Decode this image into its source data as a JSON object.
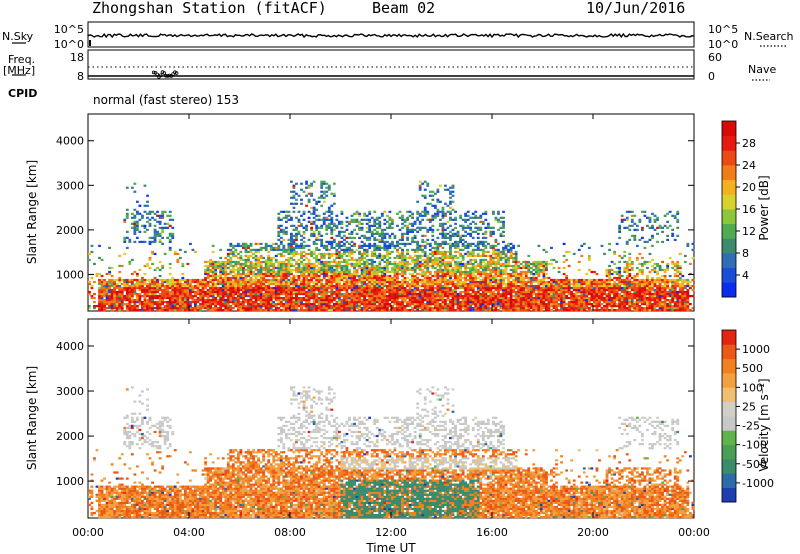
{
  "header": {
    "station": "Zhongshan Station (fitACF)",
    "beam": "Beam 02",
    "date": "10/Jun/2016"
  },
  "noise_panel": {
    "left_label": "N.Sky",
    "right_label": "N.Search",
    "left_ticks": [
      "10^5",
      "10^0"
    ],
    "right_ticks": [
      "10^5",
      "10^0"
    ]
  },
  "freq_panel": {
    "left_label_1": "Freq.",
    "left_label_2": "[MHz]",
    "right_label": "Nave",
    "left_ticks": [
      "18",
      "8"
    ],
    "right_ticks": [
      "60",
      "0"
    ]
  },
  "cpid_panel": {
    "label": "CPID",
    "text": "normal (fast stereo) 153"
  },
  "x_axis": {
    "label": "Time UT",
    "ticks": [
      "00:00",
      "04:00",
      "08:00",
      "12:00",
      "16:00",
      "20:00",
      "00:00"
    ]
  },
  "chart_data": [
    {
      "type": "heatmap",
      "name": "power",
      "ylabel": "Slant Range [km]",
      "yticks": [
        1000,
        2000,
        3000,
        4000
      ],
      "ylim": [
        180,
        4600
      ],
      "xlim_hours": [
        0,
        24
      ],
      "colorbar": {
        "label": "Power [dB]",
        "ticks": [
          "4",
          "8",
          "12",
          "16",
          "20",
          "24",
          "28"
        ],
        "colors": [
          "#0a2cf0",
          "#1c4dd6",
          "#2f6eb6",
          "#3f8a6c",
          "#4faa50",
          "#8bc63c",
          "#d8d230",
          "#f5b020",
          "#f27c18",
          "#ec4a14",
          "#e51b10",
          "#d80a08"
        ]
      }
    },
    {
      "type": "heatmap",
      "name": "velocity",
      "ylabel": "Slant Range [km]",
      "yticks": [
        1000,
        2000,
        3000,
        4000
      ],
      "ylim": [
        180,
        4600
      ],
      "xlim_hours": [
        0,
        24
      ],
      "colorbar": {
        "label": "Velocity [m s⁻¹]",
        "ticks": [
          "1000",
          "500",
          "100",
          "25",
          "-25",
          "-100",
          "-500",
          "-1000"
        ],
        "colors": [
          "#1e3fb0",
          "#2f6aa8",
          "#3a8a6c",
          "#4a9e55",
          "#5fb34a",
          "#c8c8c8",
          "#d0d0c8",
          "#f0c070",
          "#f2a040",
          "#f08020",
          "#ec5818",
          "#e42412"
        ]
      }
    }
  ]
}
